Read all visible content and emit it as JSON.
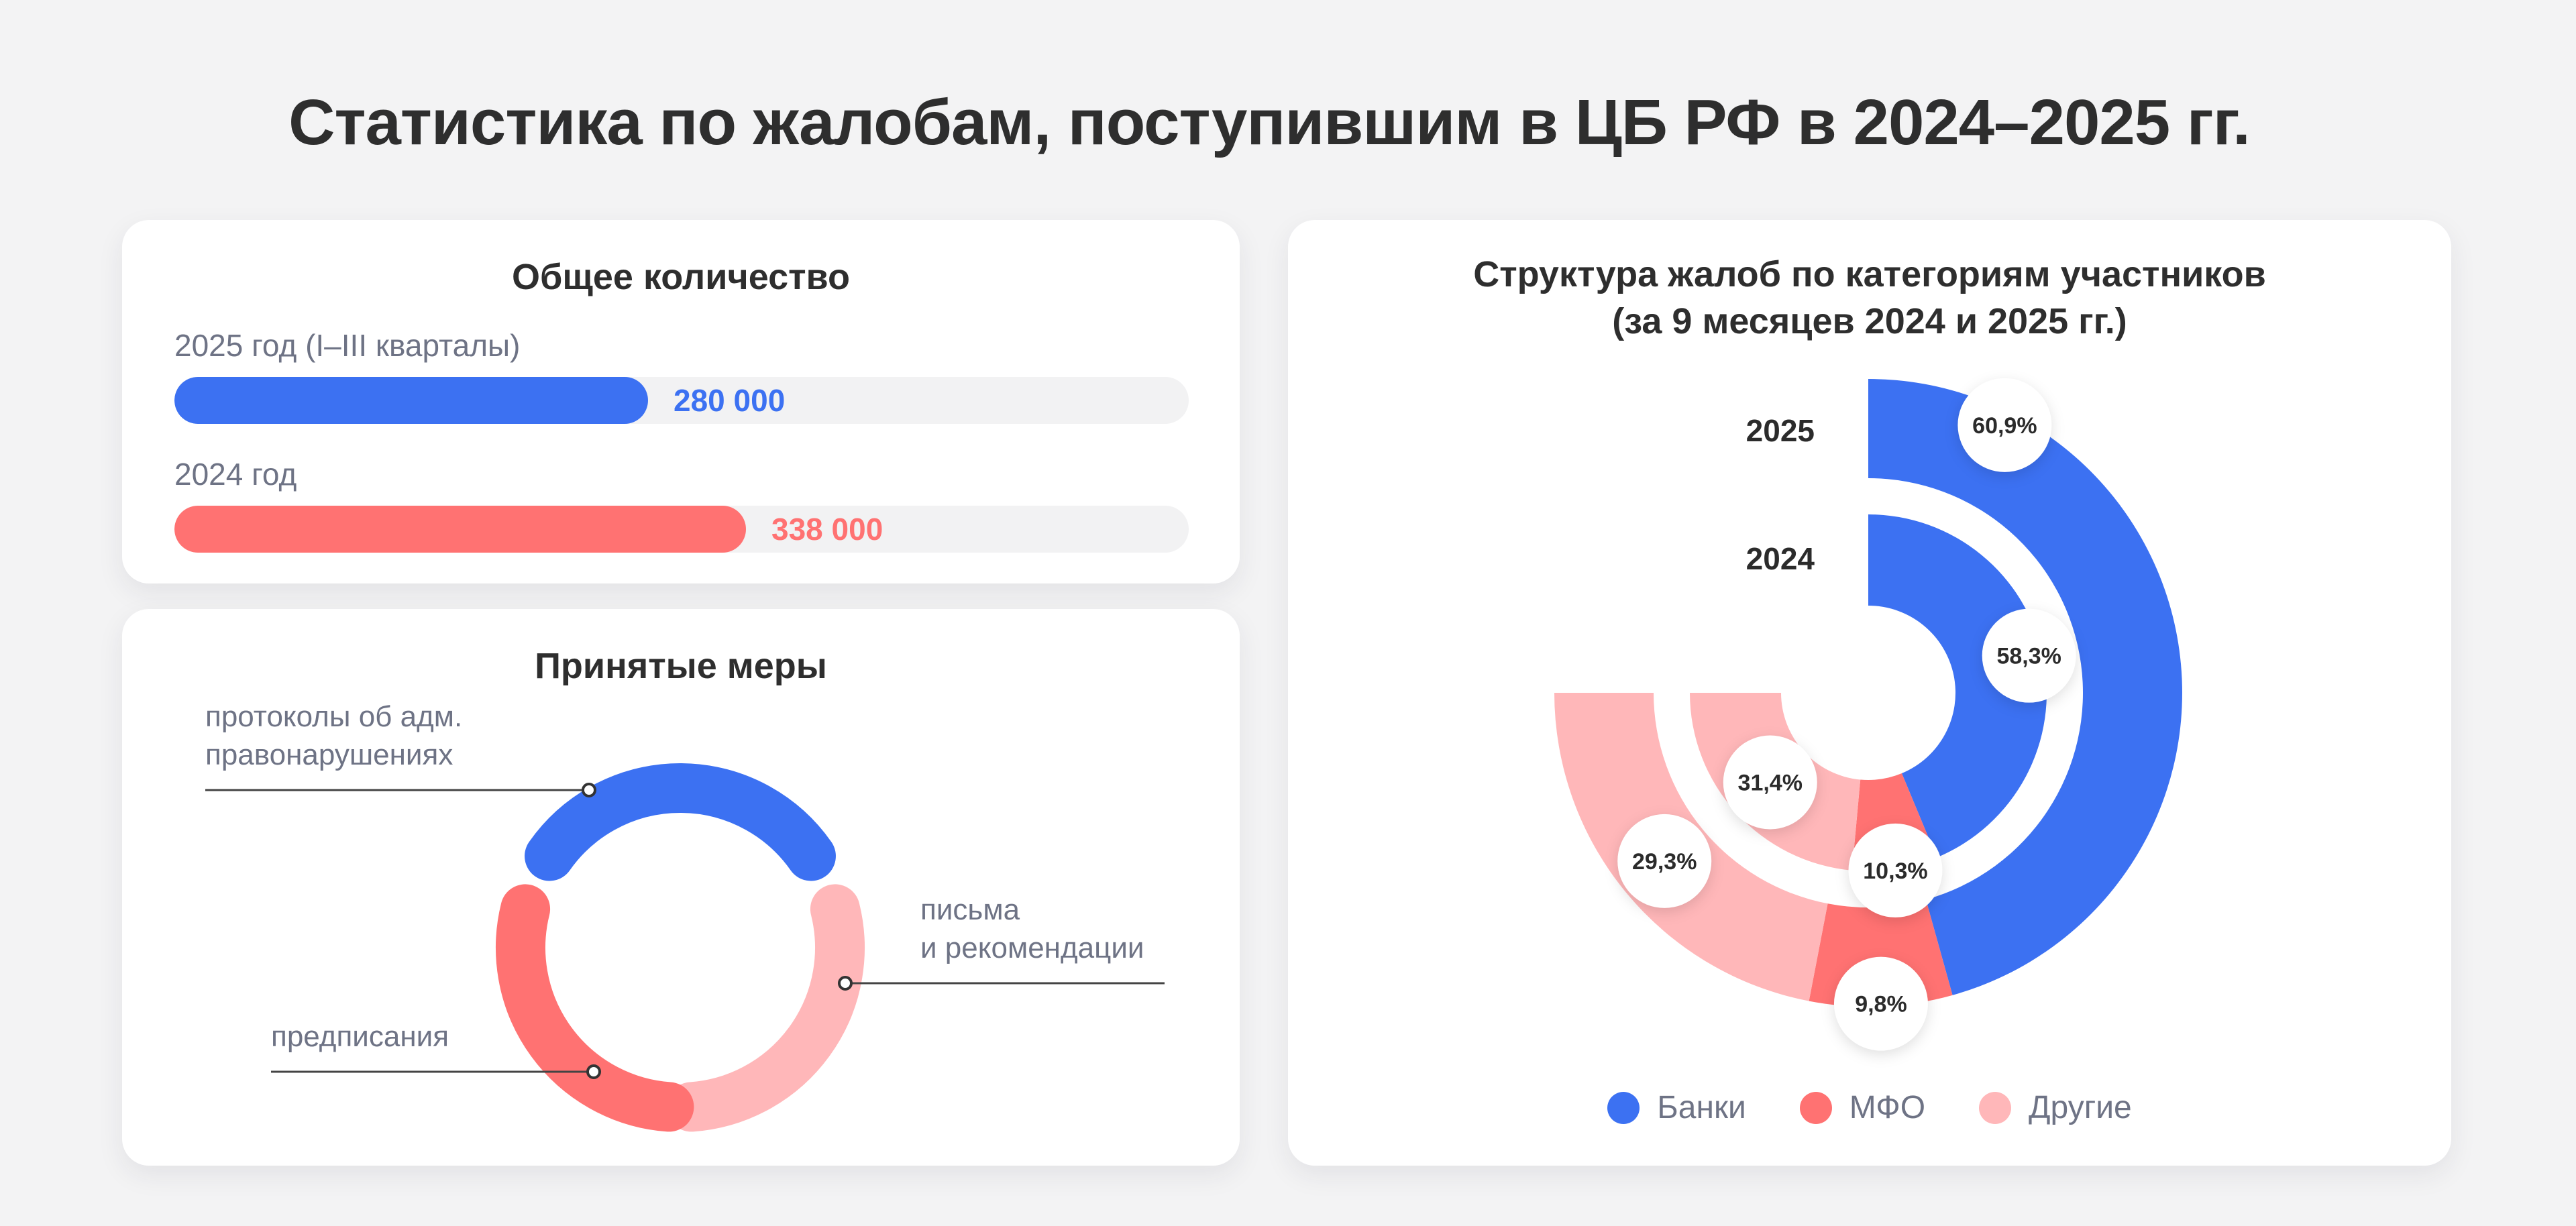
{
  "page_title": "Статистика по жалобам, поступившим в ЦБ РФ в 2024–2025 гг.",
  "colors": {
    "blue": "#3c71f2",
    "red": "#ff7272",
    "pink": "#ffb7b9",
    "track": "#f2f2f3"
  },
  "total": {
    "title": "Общее количество",
    "rows": [
      {
        "label": "2025 год (I–III кварталы)",
        "value_label": "280 000",
        "value": 280000,
        "color": "#3c71f2"
      },
      {
        "label": "2024 год",
        "value_label": "338 000",
        "value": 338000,
        "color": "#ff7272"
      }
    ]
  },
  "measures": {
    "title": "Принятые меры",
    "labels": {
      "protocols": [
        "протоколы об адм.",
        "правонарушениях"
      ],
      "orders": "предписания",
      "letters": [
        "письма",
        "и рекомендации"
      ]
    }
  },
  "structure": {
    "title_line1": "Структура жалоб по категориям участников",
    "title_line2": "(за 9 месяцев 2024 и 2025 гг.)",
    "legend": [
      {
        "label": "Банки",
        "color": "#3c71f2"
      },
      {
        "label": "МФО",
        "color": "#ff7272"
      },
      {
        "label": "Другие",
        "color": "#ffb7b9"
      }
    ]
  },
  "chart_data": [
    {
      "type": "bar",
      "title": "Общее количество",
      "categories": [
        "2025 год (I–III кварталы)",
        "2024 год"
      ],
      "values": [
        280000,
        338000
      ],
      "value_labels": [
        "280 000",
        "338 000"
      ]
    },
    {
      "type": "pie",
      "title": "Структура жалоб по категориям участников (за 9 месяцев 2024 и 2025 гг.)",
      "categories": [
        "Банки",
        "МФО",
        "Другие"
      ],
      "series": [
        {
          "name": "2025",
          "values": [
            60.9,
            9.8,
            29.3
          ],
          "labels": [
            "60,9%",
            "9,8%",
            "29,3%"
          ]
        },
        {
          "name": "2024",
          "values": [
            58.3,
            10.3,
            31.4
          ],
          "labels": [
            "58,3%",
            "10,3%",
            "31,4%"
          ]
        }
      ],
      "legend": "bottom"
    }
  ]
}
